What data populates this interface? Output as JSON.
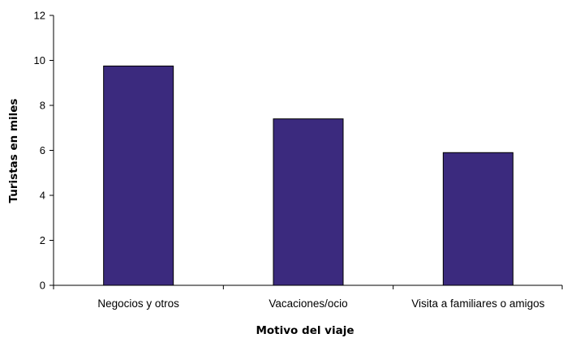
{
  "chart_data": {
    "type": "bar",
    "categories": [
      "Negocios y otros",
      "Vacaciones/ocio",
      "Visita a familiares o amigos"
    ],
    "values": [
      9.75,
      7.4,
      5.9
    ],
    "title": "",
    "xlabel": "Motivo del viaje",
    "ylabel": "Turistas en miles",
    "ylim": [
      0,
      12
    ],
    "yticks": [
      0,
      2,
      4,
      6,
      8,
      10,
      12
    ],
    "grid": false,
    "legend": "none",
    "bar_color": "#3b2a7e",
    "bar_stroke": "#000000"
  }
}
